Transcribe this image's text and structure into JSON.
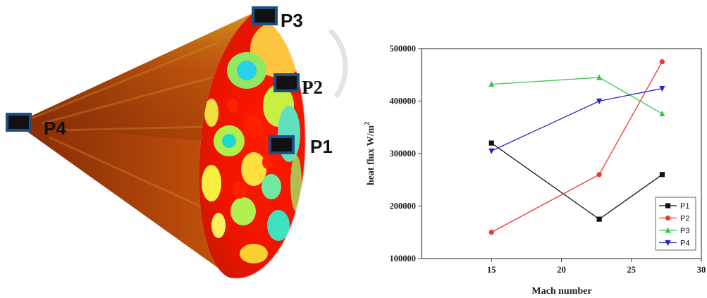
{
  "figure": {
    "markers": [
      {
        "id": "P3",
        "label": "P3"
      },
      {
        "id": "P2",
        "label": "P2"
      },
      {
        "id": "P4",
        "label": "P4"
      },
      {
        "id": "P1",
        "label": "P1"
      }
    ]
  },
  "chart_data": {
    "type": "line",
    "title": "",
    "xlabel": "Mach number",
    "ylabel": "heat flux W/m",
    "ylabel_superscript": "2",
    "xlim": [
      10,
      30
    ],
    "ylim": [
      100000,
      500000
    ],
    "x_ticks": [
      15,
      20,
      25,
      30
    ],
    "x_tick_labels": [
      "15",
      "20",
      "25",
      "30"
    ],
    "y_ticks": [
      100000,
      200000,
      300000,
      400000,
      500000
    ],
    "y_tick_labels": [
      "100000",
      "200000",
      "300000",
      "400000",
      "500000"
    ],
    "x": [
      15,
      22.7,
      27.2
    ],
    "series": [
      {
        "name": "P1",
        "values": [
          320000,
          175000,
          260000
        ],
        "color": "#111111",
        "marker": "square"
      },
      {
        "name": "P2",
        "values": [
          150000,
          260000,
          475000
        ],
        "color": "#e8392e",
        "marker": "circle"
      },
      {
        "name": "P3",
        "values": [
          432000,
          445000,
          376000
        ],
        "color": "#37c84a",
        "marker": "triangle-up"
      },
      {
        "name": "P4",
        "values": [
          305000,
          400000,
          424000
        ],
        "color": "#2626c8",
        "marker": "triangle-down"
      }
    ],
    "legend_position": "bottom-right",
    "grid": false
  }
}
